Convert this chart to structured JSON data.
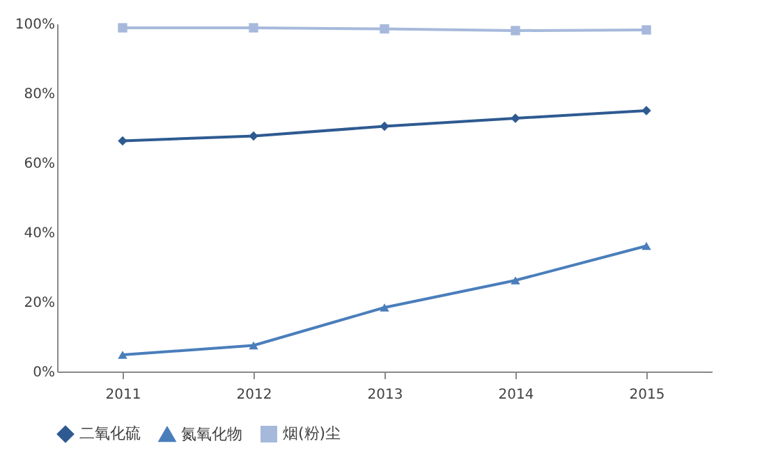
{
  "chart_data": {
    "type": "line",
    "categories": [
      "2011",
      "2012",
      "2013",
      "2014",
      "2015"
    ],
    "series": [
      {
        "name": "二氧化硫",
        "color": "#2e5a91",
        "marker": "diamond",
        "values": [
          66.3,
          67.7,
          70.5,
          72.8,
          75.0
        ]
      },
      {
        "name": "氮氧化物",
        "color": "#4a7ebb",
        "marker": "triangle",
        "values": [
          4.8,
          7.5,
          18.4,
          26.2,
          36.1
        ]
      },
      {
        "name": "烟(粉)尘",
        "color": "#a6b9dc",
        "marker": "square",
        "values": [
          98.8,
          98.8,
          98.5,
          98.0,
          98.2
        ]
      }
    ],
    "ylim": [
      0,
      100
    ],
    "yticks": [
      {
        "value": 0,
        "label": "0%"
      },
      {
        "value": 20,
        "label": "20%"
      },
      {
        "value": 40,
        "label": "40%"
      },
      {
        "value": 60,
        "label": "60%"
      },
      {
        "value": 80,
        "label": "80%"
      },
      {
        "value": 100,
        "label": "100%"
      }
    ],
    "grid": false,
    "legend": "bottom",
    "line_style": "solid"
  }
}
